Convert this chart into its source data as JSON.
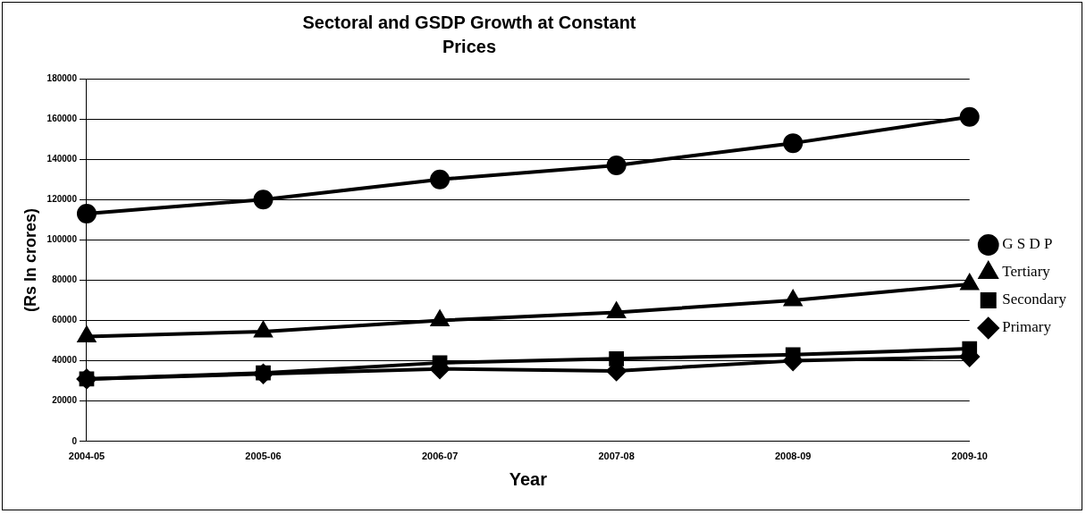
{
  "chart_data": {
    "type": "line",
    "title": "Sectoral and GSDP Growth at Constant Prices",
    "xlabel": "Year",
    "ylabel": "(Rs In crores)",
    "categories": [
      "2004-05",
      "2005-06",
      "2006-07",
      "2007-08",
      "2008-09",
      "2009-10"
    ],
    "series": [
      {
        "name": "Primary",
        "color": "#000000",
        "marker": "diamond",
        "values": [
          31000,
          33500,
          36000,
          35000,
          40000,
          42000
        ]
      },
      {
        "name": "Secondary",
        "color": "#000000",
        "marker": "square",
        "values": [
          31000,
          34000,
          39000,
          41000,
          43000,
          46000
        ]
      },
      {
        "name": "Tertiary",
        "color": "#000000",
        "marker": "triangle",
        "values": [
          52000,
          54500,
          60000,
          64000,
          70000,
          78000
        ]
      },
      {
        "name": "G S D P",
        "color": "#000000",
        "marker": "circle",
        "values": [
          113000,
          120000,
          130000,
          137000,
          148000,
          161000
        ]
      }
    ],
    "ylim": [
      0,
      180000
    ],
    "yticks": [
      0,
      20000,
      40000,
      60000,
      80000,
      100000,
      120000,
      140000,
      160000,
      180000
    ],
    "grid": "y",
    "legend": "right",
    "line_style": "solid"
  }
}
